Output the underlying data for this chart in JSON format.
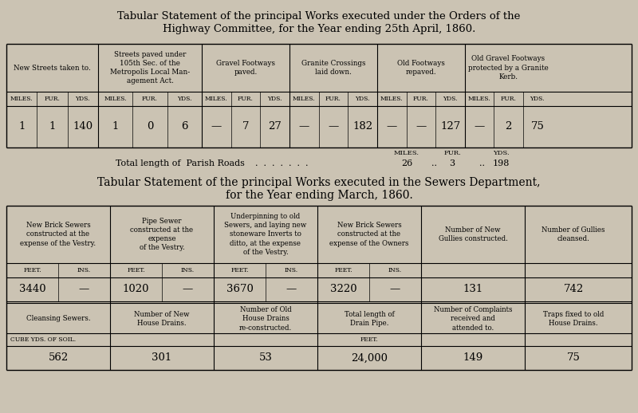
{
  "bg_color": "#cbc3b3",
  "title1_line1": "Tabular Statement of the principal Works executed under the Orders of the",
  "title1_line2": "Highway Committee, for the Year ending 25th April, 1860.",
  "title2_line1": "Tabular Statement of the principal Works executed in the Sewers Department,",
  "title2_line2": "for the Year ending March, 1860.",
  "table1_headers": [
    "New Streets taken to.",
    "Streets paved under\n105th Sec. of the\nMetropolis Local Man-\nagement Act.",
    "Gravel Footways\npaved.",
    "Granite Crossings\nlaid down.",
    "Old Footways\nrepaved.",
    "Old Gravel Footways\nprotected by a Granite\nKerb."
  ],
  "table1_data": [
    [
      "1",
      "1",
      "140"
    ],
    [
      "1",
      "0",
      "6"
    ],
    [
      "—",
      "7",
      "27"
    ],
    [
      "—",
      "—",
      "182"
    ],
    [
      "—",
      "—",
      "127"
    ],
    [
      "—",
      "2",
      "75"
    ]
  ],
  "table2_headers": [
    "New Brick Sewers\nconstructed at the\nexpense of the Vestry.",
    "Pipe Sewer\nconstructed at the\nexpense\nof the Vestry.",
    "Underpinning to old\nSewers, and laying new\nstoneware Inverts to\nditto, at the expense\nof the Vestry.",
    "New Brick Sewers\nconstructed at the\nexpense of the Owners",
    "Number of New\nGullies constructed.",
    "Number of Gullies\ncleansed."
  ],
  "table2_data_row1": [
    [
      "3440",
      "—"
    ],
    [
      "1020",
      "—"
    ],
    [
      "3670",
      "—"
    ],
    [
      "3220",
      "—"
    ],
    [
      "131",
      ""
    ],
    [
      "742",
      ""
    ]
  ],
  "table2_headers2": [
    "Cleansing Sewers.",
    "Number of New\nHouse Drains.",
    "Number of Old\nHouse Drains\nre-constructed.",
    "Total length of\nDrain Pipe.",
    "Number of Complaints\nreceived and\nattended to.",
    "Traps fixed to old\nHouse Drains."
  ],
  "table2_data_row2_units": [
    "CUBE YDS. OF SOIL.",
    "",
    "",
    "FEET.",
    "",
    ""
  ],
  "table2_data_row2": [
    "562",
    "301",
    "53",
    "24,000",
    "149",
    "75"
  ]
}
